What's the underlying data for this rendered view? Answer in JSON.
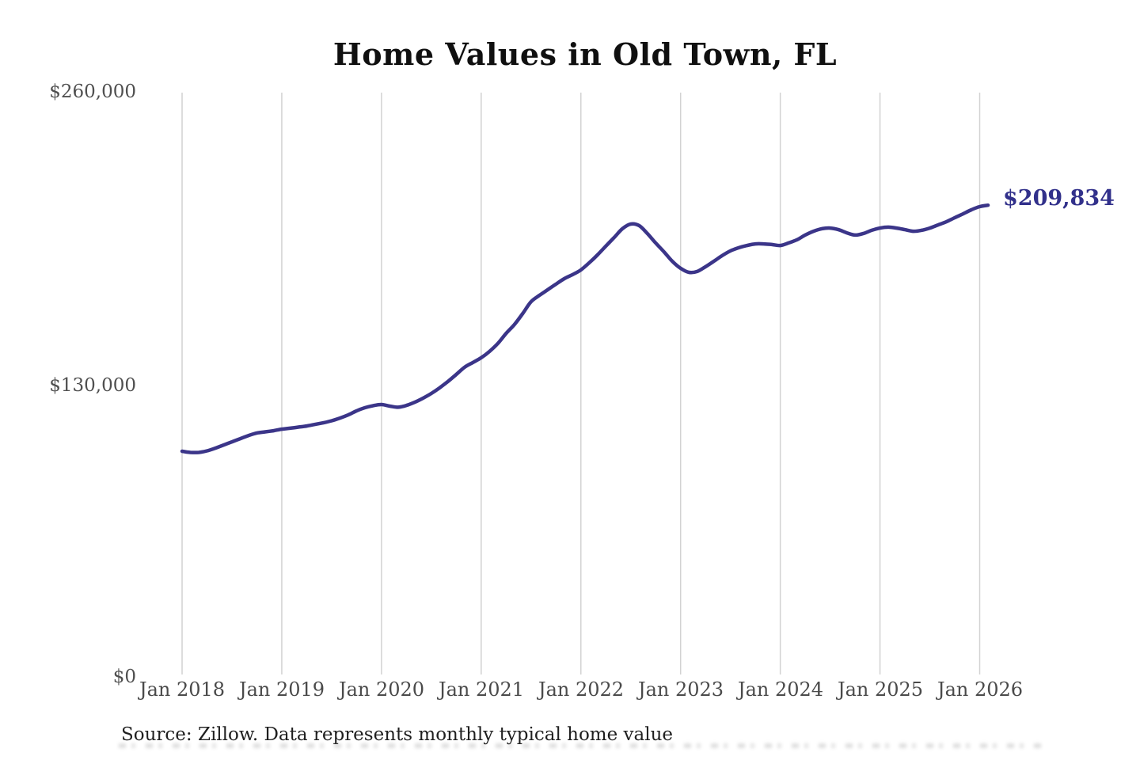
{
  "title": "Home Values in Old Town, FL",
  "source_note": "Source: Zillow. Data represents monthly typical home value",
  "chart_data": {
    "type": "line",
    "title": "Home Values in Old Town, FL",
    "grid": "vertical-only",
    "legend": "none",
    "unit": "USD",
    "line_color": "#3b3589",
    "end_label": "$209,834",
    "end_label_color": "#32318b",
    "end_value": 209834,
    "y_axis": {
      "min": 0,
      "max": 260000,
      "ticks": [
        {
          "label": "$260,000",
          "value": 260000
        },
        {
          "label": "$130,000",
          "value": 130000
        },
        {
          "label": "$0",
          "value": 0
        }
      ]
    },
    "x_axis": {
      "tick_labels": [
        "Jan 2018",
        "Jan 2019",
        "Jan 2020",
        "Jan 2021",
        "Jan 2022",
        "Jan 2023",
        "Jan 2024",
        "Jan 2025",
        "Jan 2026"
      ]
    },
    "series": [
      {
        "name": "Monthly typical home value",
        "start": "Jan 2018",
        "end": "Feb 2026",
        "frequency": "monthly",
        "values": [
          100900,
          100400,
          100400,
          101100,
          102300,
          103700,
          105100,
          106500,
          107900,
          109000,
          109500,
          110000,
          110700,
          111100,
          111600,
          112100,
          112800,
          113500,
          114400,
          115600,
          117000,
          118800,
          120200,
          121100,
          121600,
          120900,
          120400,
          121200,
          122600,
          124400,
          126500,
          129000,
          131800,
          134900,
          138100,
          140200,
          142300,
          145100,
          148600,
          153100,
          157000,
          161900,
          167100,
          169900,
          172400,
          174900,
          177300,
          179100,
          181200,
          184300,
          187800,
          191700,
          195500,
          199400,
          201500,
          200800,
          197300,
          193100,
          189200,
          185000,
          181900,
          180100,
          180500,
          182600,
          185000,
          187500,
          189600,
          191000,
          192000,
          192700,
          192700,
          192400,
          192000,
          193100,
          194500,
          196600,
          198300,
          199400,
          199700,
          199000,
          197600,
          196600,
          197300,
          198700,
          199700,
          200100,
          199700,
          199000,
          198300,
          198700,
          199700,
          201100,
          202500,
          204300,
          206000,
          207800,
          209200,
          209834
        ]
      }
    ]
  }
}
